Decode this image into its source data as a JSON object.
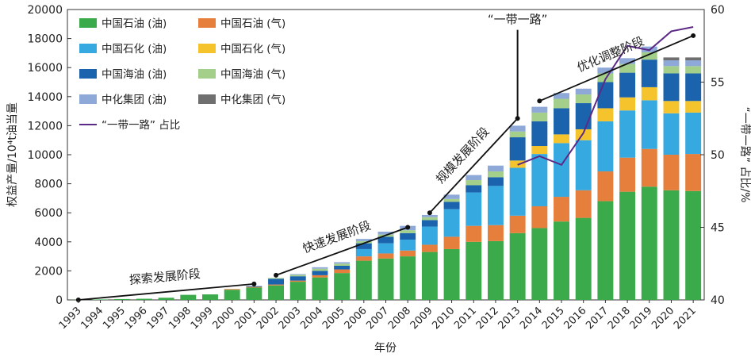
{
  "chart_data": {
    "type": "bar",
    "stacked": true,
    "xlabel": "年份",
    "ylabel": "权益产量/10⁴t油当量",
    "ylabel_right": "“一带一路” 占比/%",
    "ylim": [
      0,
      20000
    ],
    "ylim_right": [
      40,
      60
    ],
    "yticks": [
      "0",
      "2000",
      "4000",
      "6000",
      "8000",
      "10000",
      "12000",
      "14000",
      "16000",
      "18000",
      "20000"
    ],
    "yticks_right": [
      "40",
      "45",
      "50",
      "55",
      "60"
    ],
    "categories": [
      "1993",
      "1994",
      "1995",
      "1996",
      "1997",
      "1998",
      "1999",
      "2000",
      "2001",
      "2002",
      "2003",
      "2004",
      "2005",
      "2006",
      "2007",
      "2008",
      "2009",
      "2010",
      "2011",
      "2012",
      "2013",
      "2014",
      "2015",
      "2016",
      "2017",
      "2018",
      "2019",
      "2020",
      "2021"
    ],
    "series": [
      {
        "name": "中国石油 (油)",
        "color": "#3aaa4a",
        "values": [
          10,
          30,
          60,
          80,
          150,
          350,
          380,
          700,
          850,
          1000,
          1250,
          1550,
          1850,
          2700,
          2850,
          3000,
          3300,
          3500,
          4000,
          4050,
          4600,
          4950,
          5400,
          5650,
          6800,
          7450,
          7800,
          7550,
          7500
        ]
      },
      {
        "name": "中国石油 (气)",
        "color": "#e67e3c",
        "values": [
          0,
          0,
          0,
          0,
          0,
          0,
          0,
          50,
          50,
          60,
          80,
          150,
          250,
          300,
          350,
          400,
          500,
          850,
          1100,
          1100,
          1200,
          1500,
          1700,
          1900,
          2050,
          2350,
          2600,
          2450,
          2550
        ]
      },
      {
        "name": "中国石化 (油)",
        "color": "#36a9e1",
        "values": [
          0,
          0,
          0,
          0,
          0,
          0,
          0,
          0,
          0,
          0,
          0,
          0,
          0,
          500,
          700,
          750,
          1250,
          1900,
          2300,
          2700,
          3300,
          3600,
          3700,
          3450,
          3450,
          3250,
          3350,
          2850,
          2850
        ]
      },
      {
        "name": "中国石化 (气)",
        "color": "#f5c32c",
        "values": [
          0,
          0,
          0,
          0,
          0,
          0,
          0,
          0,
          0,
          0,
          0,
          0,
          0,
          0,
          0,
          0,
          0,
          0,
          0,
          0,
          500,
          550,
          600,
          750,
          900,
          900,
          900,
          850,
          800
        ]
      },
      {
        "name": "中国海油 (油)",
        "color": "#1b64ad",
        "values": [
          0,
          0,
          0,
          0,
          0,
          0,
          0,
          0,
          50,
          400,
          300,
          300,
          250,
          400,
          450,
          450,
          450,
          500,
          500,
          600,
          1600,
          1700,
          1800,
          1800,
          1800,
          1700,
          1900,
          1900,
          1900
        ]
      },
      {
        "name": "中国海油 (气)",
        "color": "#a4cf8a",
        "values": [
          0,
          0,
          0,
          0,
          0,
          0,
          0,
          0,
          0,
          50,
          100,
          150,
          150,
          150,
          150,
          200,
          200,
          200,
          350,
          400,
          400,
          600,
          650,
          600,
          600,
          600,
          500,
          500,
          500
        ]
      },
      {
        "name": "中化集团 (油)",
        "color": "#8ea9d8",
        "values": [
          0,
          0,
          0,
          0,
          0,
          0,
          0,
          0,
          0,
          0,
          50,
          100,
          100,
          150,
          200,
          300,
          150,
          300,
          350,
          400,
          400,
          400,
          400,
          400,
          400,
          400,
          400,
          400,
          400
        ]
      },
      {
        "name": "中化集团 (气)",
        "color": "#6f6f6f",
        "values": [
          0,
          0,
          0,
          0,
          0,
          0,
          0,
          0,
          0,
          0,
          0,
          0,
          0,
          0,
          0,
          0,
          0,
          0,
          0,
          0,
          0,
          0,
          0,
          0,
          0,
          0,
          0,
          200,
          200
        ]
      }
    ],
    "line": {
      "name": "“一带一路” 占比",
      "color": "#5b2a86",
      "x_start": "2013",
      "categories": [
        "2013",
        "2014",
        "2015",
        "2016",
        "2017",
        "2018",
        "2019",
        "2020",
        "2021"
      ],
      "values": [
        49.3,
        49.9,
        49.3,
        51.5,
        55.2,
        57.5,
        57.2,
        58.5,
        58.8
      ]
    },
    "stages": [
      {
        "label": "探索发展阶段",
        "from": "1993",
        "to": "2001",
        "y_from": 0,
        "y_to": 1100
      },
      {
        "label": "快速发展阶段",
        "from": "2002",
        "to": "2008",
        "y_from": 1700,
        "y_to": 5000
      },
      {
        "label": "规模发展阶段",
        "from": "2009",
        "to": "2013",
        "y_from": 6000,
        "y_to": 12500
      },
      {
        "label": "优化调整阶段",
        "from": "2014",
        "to": "2021",
        "y_from": 13700,
        "y_to": 18200
      }
    ],
    "marker_2013": {
      "label": "“一带一路”",
      "year": "2013",
      "y_from": 18600,
      "y_to": 12500
    },
    "legend": {
      "position": "top-left",
      "columns": 2
    }
  }
}
